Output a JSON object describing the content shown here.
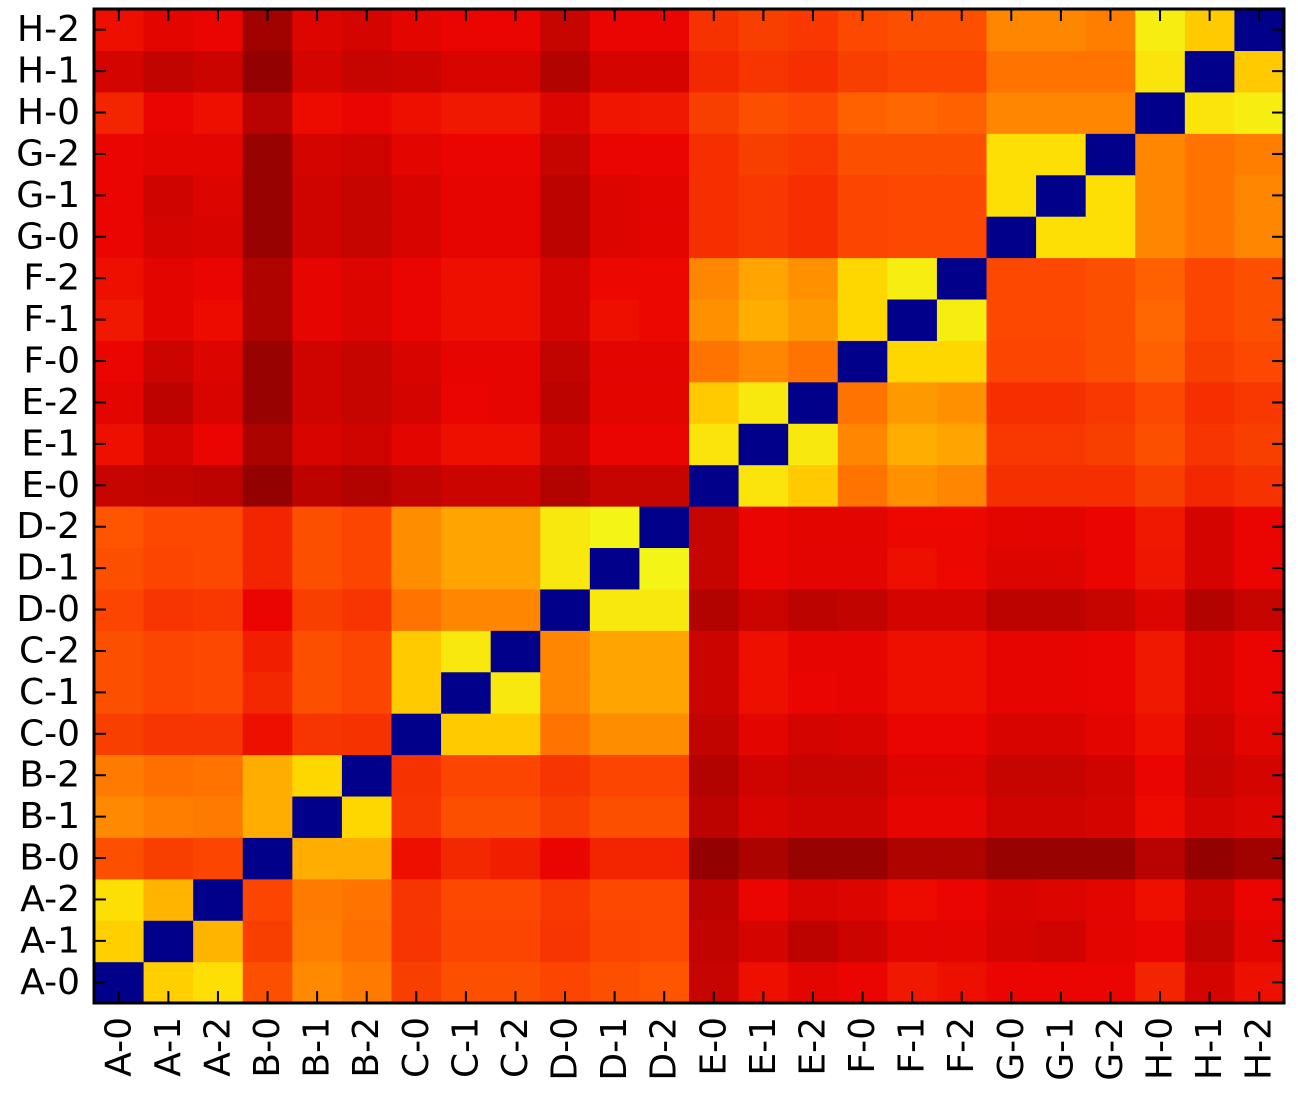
{
  "chart_data": {
    "type": "heatmap",
    "title": "",
    "xlabel": "",
    "ylabel": "",
    "colormap": "hot (diagonal shown in navy)",
    "diagonal_color": "#00008b",
    "value_range": [
      0,
      1
    ],
    "x_labels": [
      "A-0",
      "A-1",
      "A-2",
      "B-0",
      "B-1",
      "B-2",
      "C-0",
      "C-1",
      "C-2",
      "D-0",
      "D-1",
      "D-2",
      "E-0",
      "E-1",
      "E-2",
      "F-0",
      "F-1",
      "F-2",
      "G-0",
      "G-1",
      "G-2",
      "H-0",
      "H-1",
      "H-2"
    ],
    "y_labels": [
      "A-0",
      "A-1",
      "A-2",
      "B-0",
      "B-1",
      "B-2",
      "C-0",
      "C-1",
      "C-2",
      "D-0",
      "D-1",
      "D-2",
      "E-0",
      "E-1",
      "E-2",
      "F-0",
      "F-1",
      "F-2",
      "G-0",
      "G-1",
      "G-2",
      "H-0",
      "H-1",
      "H-2"
    ],
    "values": [
      [
        0.0,
        0.86,
        0.9,
        0.53,
        0.69,
        0.65,
        0.48,
        0.53,
        0.53,
        0.5,
        0.53,
        0.55,
        0.22,
        0.33,
        0.28,
        0.3,
        0.36,
        0.33,
        0.3,
        0.3,
        0.3,
        0.4,
        0.25,
        0.33
      ],
      [
        0.86,
        0.0,
        0.8,
        0.48,
        0.66,
        0.62,
        0.45,
        0.5,
        0.5,
        0.45,
        0.5,
        0.51,
        0.21,
        0.25,
        0.2,
        0.23,
        0.28,
        0.28,
        0.25,
        0.24,
        0.28,
        0.3,
        0.21,
        0.28
      ],
      [
        0.9,
        0.8,
        0.0,
        0.5,
        0.65,
        0.63,
        0.45,
        0.51,
        0.51,
        0.46,
        0.51,
        0.51,
        0.2,
        0.3,
        0.26,
        0.27,
        0.32,
        0.3,
        0.26,
        0.27,
        0.28,
        0.33,
        0.23,
        0.3
      ],
      [
        0.53,
        0.48,
        0.5,
        0.0,
        0.78,
        0.78,
        0.33,
        0.41,
        0.38,
        0.3,
        0.4,
        0.4,
        0.11,
        0.16,
        0.12,
        0.12,
        0.17,
        0.17,
        0.12,
        0.12,
        0.12,
        0.19,
        0.11,
        0.14
      ],
      [
        0.69,
        0.66,
        0.65,
        0.78,
        0.0,
        0.88,
        0.45,
        0.53,
        0.53,
        0.48,
        0.53,
        0.53,
        0.2,
        0.26,
        0.24,
        0.24,
        0.29,
        0.29,
        0.24,
        0.24,
        0.25,
        0.32,
        0.25,
        0.27
      ],
      [
        0.65,
        0.62,
        0.63,
        0.78,
        0.88,
        0.0,
        0.44,
        0.5,
        0.5,
        0.45,
        0.5,
        0.5,
        0.18,
        0.24,
        0.22,
        0.22,
        0.27,
        0.27,
        0.22,
        0.22,
        0.24,
        0.3,
        0.22,
        0.25
      ],
      [
        0.48,
        0.45,
        0.45,
        0.33,
        0.45,
        0.44,
        0.0,
        0.85,
        0.85,
        0.63,
        0.7,
        0.7,
        0.21,
        0.28,
        0.25,
        0.26,
        0.3,
        0.3,
        0.26,
        0.26,
        0.28,
        0.33,
        0.23,
        0.28
      ],
      [
        0.53,
        0.5,
        0.51,
        0.41,
        0.53,
        0.5,
        0.85,
        0.0,
        0.93,
        0.68,
        0.76,
        0.76,
        0.23,
        0.33,
        0.3,
        0.29,
        0.33,
        0.33,
        0.29,
        0.29,
        0.3,
        0.36,
        0.26,
        0.3
      ],
      [
        0.53,
        0.5,
        0.51,
        0.38,
        0.53,
        0.5,
        0.85,
        0.93,
        0.0,
        0.68,
        0.76,
        0.76,
        0.23,
        0.33,
        0.29,
        0.29,
        0.33,
        0.33,
        0.29,
        0.29,
        0.3,
        0.36,
        0.26,
        0.3
      ],
      [
        0.5,
        0.45,
        0.46,
        0.3,
        0.48,
        0.45,
        0.63,
        0.68,
        0.68,
        0.0,
        0.93,
        0.93,
        0.18,
        0.23,
        0.2,
        0.21,
        0.25,
        0.25,
        0.2,
        0.2,
        0.22,
        0.27,
        0.18,
        0.22
      ],
      [
        0.53,
        0.5,
        0.51,
        0.4,
        0.53,
        0.5,
        0.7,
        0.76,
        0.76,
        0.93,
        0.0,
        0.97,
        0.22,
        0.3,
        0.28,
        0.28,
        0.33,
        0.31,
        0.27,
        0.27,
        0.3,
        0.35,
        0.25,
        0.3
      ],
      [
        0.55,
        0.51,
        0.51,
        0.4,
        0.53,
        0.5,
        0.7,
        0.76,
        0.76,
        0.93,
        0.97,
        0.0,
        0.22,
        0.3,
        0.28,
        0.28,
        0.31,
        0.31,
        0.28,
        0.28,
        0.3,
        0.36,
        0.25,
        0.3
      ],
      [
        0.22,
        0.21,
        0.2,
        0.11,
        0.2,
        0.18,
        0.21,
        0.23,
        0.23,
        0.18,
        0.22,
        0.22,
        0.0,
        0.92,
        0.85,
        0.63,
        0.71,
        0.68,
        0.43,
        0.43,
        0.43,
        0.48,
        0.41,
        0.44
      ],
      [
        0.33,
        0.25,
        0.3,
        0.16,
        0.26,
        0.24,
        0.28,
        0.33,
        0.33,
        0.23,
        0.3,
        0.3,
        0.92,
        0.0,
        0.93,
        0.68,
        0.78,
        0.76,
        0.46,
        0.46,
        0.48,
        0.53,
        0.45,
        0.48
      ],
      [
        0.28,
        0.2,
        0.26,
        0.12,
        0.24,
        0.22,
        0.25,
        0.3,
        0.29,
        0.2,
        0.28,
        0.28,
        0.85,
        0.93,
        0.0,
        0.63,
        0.73,
        0.71,
        0.43,
        0.43,
        0.46,
        0.51,
        0.43,
        0.46
      ],
      [
        0.3,
        0.23,
        0.27,
        0.12,
        0.24,
        0.22,
        0.26,
        0.29,
        0.29,
        0.21,
        0.28,
        0.28,
        0.63,
        0.68,
        0.63,
        0.0,
        0.88,
        0.88,
        0.5,
        0.5,
        0.53,
        0.58,
        0.48,
        0.51
      ],
      [
        0.36,
        0.28,
        0.32,
        0.17,
        0.29,
        0.27,
        0.3,
        0.33,
        0.33,
        0.25,
        0.33,
        0.31,
        0.71,
        0.78,
        0.73,
        0.88,
        0.0,
        0.95,
        0.51,
        0.51,
        0.53,
        0.6,
        0.5,
        0.53
      ],
      [
        0.33,
        0.28,
        0.3,
        0.17,
        0.29,
        0.27,
        0.3,
        0.33,
        0.33,
        0.25,
        0.31,
        0.31,
        0.68,
        0.76,
        0.71,
        0.88,
        0.95,
        0.0,
        0.51,
        0.51,
        0.53,
        0.58,
        0.5,
        0.53
      ],
      [
        0.3,
        0.25,
        0.26,
        0.12,
        0.24,
        0.22,
        0.26,
        0.29,
        0.29,
        0.2,
        0.27,
        0.28,
        0.43,
        0.46,
        0.43,
        0.5,
        0.51,
        0.51,
        0.0,
        0.9,
        0.9,
        0.68,
        0.63,
        0.68
      ],
      [
        0.3,
        0.24,
        0.27,
        0.12,
        0.24,
        0.22,
        0.26,
        0.29,
        0.29,
        0.2,
        0.27,
        0.28,
        0.43,
        0.46,
        0.43,
        0.5,
        0.51,
        0.51,
        0.9,
        0.0,
        0.9,
        0.68,
        0.63,
        0.68
      ],
      [
        0.3,
        0.28,
        0.28,
        0.12,
        0.25,
        0.24,
        0.28,
        0.3,
        0.3,
        0.22,
        0.3,
        0.3,
        0.43,
        0.48,
        0.46,
        0.53,
        0.53,
        0.53,
        0.9,
        0.9,
        0.0,
        0.68,
        0.63,
        0.66
      ],
      [
        0.4,
        0.3,
        0.33,
        0.19,
        0.32,
        0.3,
        0.33,
        0.36,
        0.36,
        0.27,
        0.35,
        0.36,
        0.48,
        0.53,
        0.51,
        0.58,
        0.6,
        0.58,
        0.68,
        0.68,
        0.68,
        0.0,
        0.92,
        0.95
      ],
      [
        0.25,
        0.21,
        0.23,
        0.11,
        0.25,
        0.22,
        0.23,
        0.26,
        0.26,
        0.18,
        0.25,
        0.25,
        0.41,
        0.45,
        0.43,
        0.48,
        0.5,
        0.5,
        0.63,
        0.63,
        0.63,
        0.92,
        0.0,
        0.85
      ],
      [
        0.33,
        0.28,
        0.3,
        0.14,
        0.27,
        0.25,
        0.28,
        0.3,
        0.3,
        0.22,
        0.3,
        0.3,
        0.44,
        0.48,
        0.46,
        0.51,
        0.53,
        0.53,
        0.68,
        0.68,
        0.66,
        0.95,
        0.85,
        0.0
      ]
    ]
  }
}
